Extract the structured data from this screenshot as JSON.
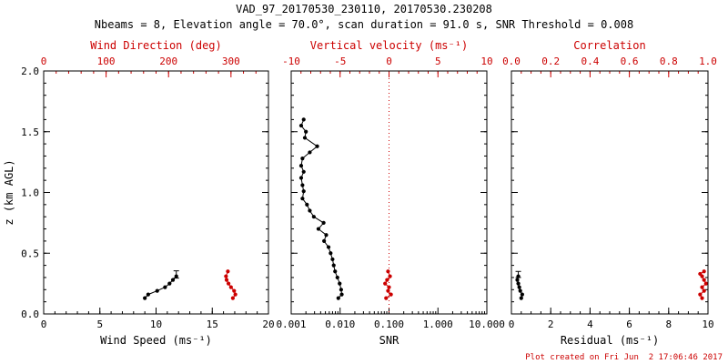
{
  "header": {
    "title": "VAD_97_20170530_230110, 20170530.230208",
    "subtitle": "Nbeams = 8, Elevation angle = 70.0°, scan duration = 91.0 s, SNR Threshold = 0.008"
  },
  "footer": {
    "text": "Plot created on Fri Jun  2 17:06:46 2017"
  },
  "colors": {
    "primary": "#000000",
    "secondary": "#cc0000",
    "background": "#ffffff"
  },
  "chart_data": [
    {
      "type": "line",
      "name": "wind-panel",
      "x_bottom": {
        "label": "Wind Speed (ms⁻¹)",
        "range": [
          0,
          20
        ],
        "scale": "linear",
        "ticks": [
          0,
          5,
          10,
          15,
          20
        ],
        "tick_labels": [
          "0",
          "5",
          "10",
          "15",
          "20"
        ],
        "minor_step": 1
      },
      "x_top": {
        "label": "Wind Direction (deg)",
        "range": [
          0,
          360
        ],
        "ticks": [
          0,
          100,
          200,
          300
        ],
        "tick_labels": [
          "0",
          "100",
          "200",
          "300"
        ],
        "minor_step": 20
      },
      "y": {
        "label": "z (km AGL)",
        "range": [
          0,
          2
        ],
        "ticks": [
          0,
          0.5,
          1,
          1.5,
          2
        ],
        "tick_labels": [
          "0.0",
          "0.5",
          "1.0",
          "1.5",
          "2.0"
        ],
        "minor_step": 0.1,
        "show_labels": true
      },
      "series": [
        {
          "name": "wind-speed",
          "axis": "bottom",
          "color": "primary",
          "points": [
            [
              9.0,
              0.13
            ],
            [
              9.3,
              0.16
            ],
            [
              10.1,
              0.19
            ],
            [
              10.8,
              0.22
            ],
            [
              11.2,
              0.25
            ],
            [
              11.5,
              0.28
            ],
            [
              11.8,
              0.31
            ]
          ],
          "whiskers": [
            [
              11.8,
              0.325,
              0.03
            ]
          ]
        },
        {
          "name": "wind-direction",
          "axis": "top",
          "color": "secondary",
          "points": [
            [
              303,
              0.13
            ],
            [
              307,
              0.16
            ],
            [
              305,
              0.19
            ],
            [
              300,
              0.22
            ],
            [
              296,
              0.25
            ],
            [
              293,
              0.28
            ],
            [
              292,
              0.31
            ],
            [
              295,
              0.35
            ]
          ],
          "whiskers": []
        }
      ]
    },
    {
      "type": "line",
      "name": "snr-panel",
      "x_bottom": {
        "label": "SNR",
        "range": [
          0.001,
          10
        ],
        "scale": "log",
        "ticks": [
          0.001,
          0.01,
          0.1,
          1,
          10
        ],
        "tick_labels": [
          "0.001",
          "0.010",
          "0.100",
          "1.000",
          "10.000"
        ]
      },
      "x_top": {
        "label": "Vertical velocity (ms⁻¹)",
        "range": [
          -10,
          10
        ],
        "ticks": [
          -10,
          -5,
          0,
          5,
          10
        ],
        "tick_labels": [
          "-10",
          "-5",
          "0",
          "5",
          "10"
        ],
        "minor_step": 1
      },
      "y": {
        "label": "",
        "range": [
          0,
          2
        ],
        "ticks": [
          0,
          0.5,
          1,
          1.5,
          2
        ],
        "tick_labels": [
          "0.0",
          "0.5",
          "1.0",
          "1.5",
          "2.0"
        ],
        "minor_step": 0.1,
        "show_labels": false
      },
      "refline": {
        "axis": "top",
        "value": 0,
        "color": "secondary",
        "style": "dotted"
      },
      "series": [
        {
          "name": "snr-profile",
          "axis": "bottom",
          "color": "primary",
          "points": [
            [
              0.0018,
              1.6
            ],
            [
              0.0016,
              1.55
            ],
            [
              0.002,
              1.5
            ],
            [
              0.0019,
              1.45
            ],
            [
              0.0034,
              1.38
            ],
            [
              0.0024,
              1.33
            ],
            [
              0.0017,
              1.28
            ],
            [
              0.0016,
              1.22
            ],
            [
              0.0018,
              1.17
            ],
            [
              0.0016,
              1.12
            ],
            [
              0.0017,
              1.06
            ],
            [
              0.0018,
              1.01
            ],
            [
              0.0017,
              0.95
            ],
            [
              0.0021,
              0.9
            ],
            [
              0.0024,
              0.85
            ],
            [
              0.0029,
              0.8
            ],
            [
              0.0046,
              0.75
            ],
            [
              0.0036,
              0.7
            ],
            [
              0.0052,
              0.65
            ],
            [
              0.0047,
              0.6
            ],
            [
              0.0058,
              0.55
            ],
            [
              0.0064,
              0.5
            ],
            [
              0.007,
              0.45
            ],
            [
              0.0074,
              0.4
            ],
            [
              0.0079,
              0.35
            ],
            [
              0.0088,
              0.3
            ],
            [
              0.0098,
              0.25
            ],
            [
              0.0105,
              0.2
            ],
            [
              0.0108,
              0.16
            ],
            [
              0.0092,
              0.13
            ]
          ],
          "whiskers": []
        },
        {
          "name": "vertical-velocity",
          "axis": "top",
          "color": "secondary",
          "points": [
            [
              -0.3,
              0.13
            ],
            [
              0.2,
              0.16
            ],
            [
              -0.1,
              0.19
            ],
            [
              0.0,
              0.22
            ],
            [
              -0.4,
              0.25
            ],
            [
              -0.2,
              0.28
            ],
            [
              0.1,
              0.31
            ],
            [
              -0.1,
              0.35
            ]
          ],
          "whiskers": []
        }
      ]
    },
    {
      "type": "line",
      "name": "residual-panel",
      "x_bottom": {
        "label": "Residual (ms⁻¹)",
        "range": [
          0,
          10
        ],
        "scale": "linear",
        "ticks": [
          0,
          2,
          4,
          6,
          8,
          10
        ],
        "tick_labels": [
          "0",
          "2",
          "4",
          "6",
          "8",
          "10"
        ],
        "minor_step": 0.5
      },
      "x_top": {
        "label": "Correlation",
        "range": [
          0,
          1
        ],
        "ticks": [
          0,
          0.2,
          0.4,
          0.6,
          0.8,
          1
        ],
        "tick_labels": [
          "0.0",
          "0.2",
          "0.4",
          "0.6",
          "0.8",
          "1.0"
        ],
        "minor_step": 0.05
      },
      "y": {
        "label": "",
        "range": [
          0,
          2
        ],
        "ticks": [
          0,
          0.5,
          1,
          1.5,
          2
        ],
        "tick_labels": [
          "0.0",
          "0.5",
          "1.0",
          "1.5",
          "2.0"
        ],
        "minor_step": 0.1,
        "show_labels": false
      },
      "series": [
        {
          "name": "residual",
          "axis": "bottom",
          "color": "primary",
          "points": [
            [
              0.5,
              0.13
            ],
            [
              0.55,
              0.16
            ],
            [
              0.45,
              0.19
            ],
            [
              0.4,
              0.22
            ],
            [
              0.35,
              0.25
            ],
            [
              0.3,
              0.28
            ],
            [
              0.35,
              0.31
            ]
          ],
          "whiskers": [
            [
              0.35,
              0.325,
              0.025
            ]
          ]
        },
        {
          "name": "correlation",
          "axis": "top",
          "color": "secondary",
          "points": [
            [
              0.97,
              0.13
            ],
            [
              0.96,
              0.16
            ],
            [
              0.98,
              0.19
            ],
            [
              0.97,
              0.22
            ],
            [
              0.99,
              0.25
            ],
            [
              0.98,
              0.28
            ],
            [
              0.97,
              0.31
            ],
            [
              0.96,
              0.33
            ],
            [
              0.98,
              0.35
            ]
          ],
          "whiskers": []
        }
      ]
    }
  ]
}
